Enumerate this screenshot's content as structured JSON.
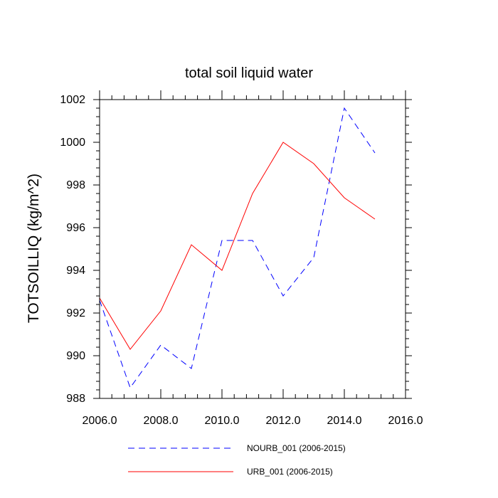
{
  "chart_data": {
    "type": "line",
    "title": "total soil liquid water",
    "xlabel": "",
    "ylabel": "TOTSOILLIQ  (kg/m^2)",
    "xlim": [
      2006.0,
      2016.0
    ],
    "ylim": [
      988,
      1002
    ],
    "x_ticks": [
      "2006.0",
      "2008.0",
      "2010.0",
      "2012.0",
      "2014.0",
      "2016.0"
    ],
    "y_ticks": [
      "988",
      "990",
      "992",
      "994",
      "996",
      "998",
      "1000",
      "1002"
    ],
    "grid": false,
    "legend_position": "bottom",
    "series": [
      {
        "name": "NOURB_001 (2006-2015)",
        "color": "#0000ff",
        "style": "dashed",
        "x": [
          2006,
          2007,
          2008,
          2009,
          2010,
          2011,
          2012,
          2013,
          2014,
          2015
        ],
        "values": [
          992.6,
          988.5,
          990.5,
          989.4,
          995.4,
          995.4,
          992.8,
          994.6,
          1001.6,
          999.5
        ]
      },
      {
        "name": "URB_001 (2006-2015)",
        "color": "#ff0000",
        "style": "solid",
        "x": [
          2006,
          2007,
          2008,
          2009,
          2010,
          2011,
          2012,
          2013,
          2014,
          2015
        ],
        "values": [
          992.7,
          990.3,
          992.1,
          995.2,
          994.0,
          997.6,
          1000.0,
          999.0,
          997.4,
          996.4
        ]
      }
    ]
  }
}
